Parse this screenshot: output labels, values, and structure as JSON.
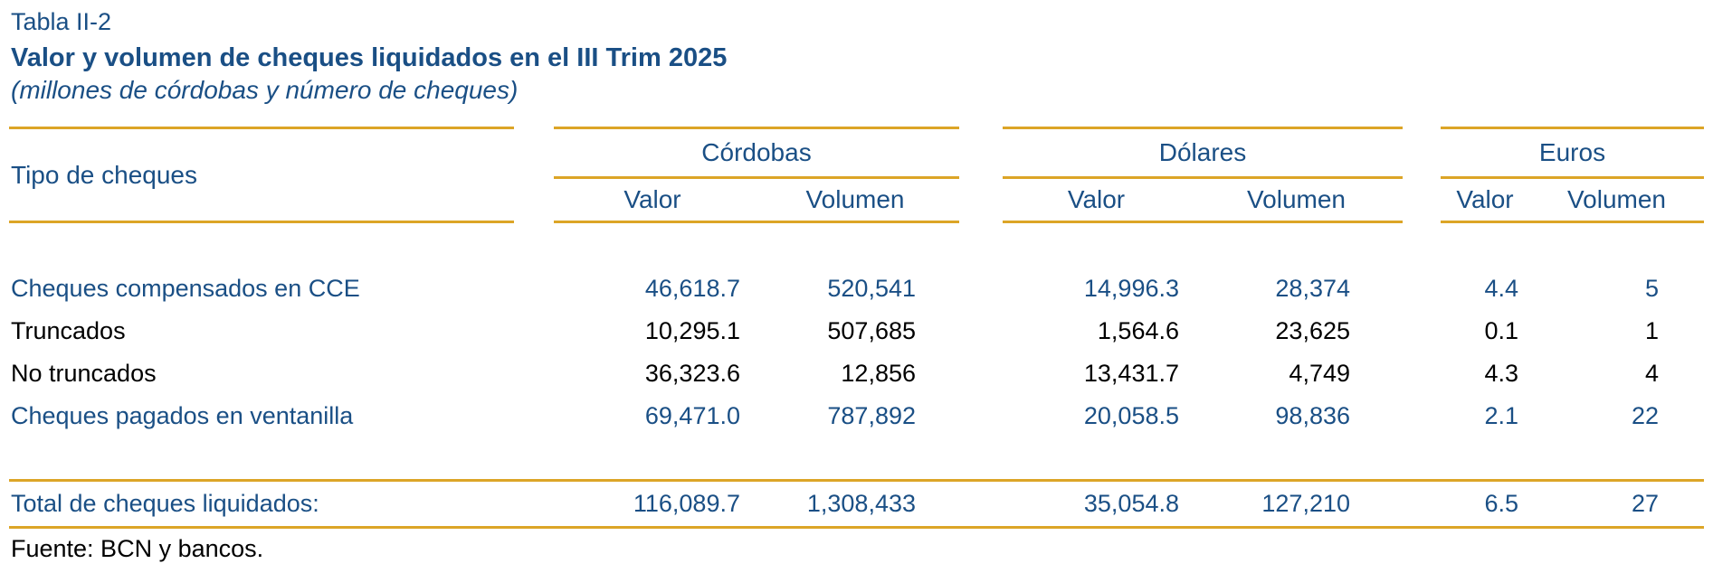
{
  "title": {
    "label": "Tabla II-2",
    "heading": "Valor y volumen de cheques liquidados en el III Trim 2025",
    "subtitle": "(millones de córdobas y número de cheques)"
  },
  "table": {
    "row_header": "Tipo de cheques",
    "groups": [
      {
        "label": "Córdobas",
        "columns": [
          "Valor",
          "Volumen"
        ]
      },
      {
        "label": "Dólares",
        "columns": [
          "Valor",
          "Volumen"
        ]
      },
      {
        "label": "Euros",
        "columns": [
          "Valor",
          "Volumen"
        ]
      }
    ],
    "rows": [
      {
        "label": "Cheques compensados en CCE",
        "emphasis": true,
        "values": [
          "46,618.7",
          "520,541",
          "14,996.3",
          "28,374",
          "4.4",
          "5"
        ]
      },
      {
        "label": "Truncados",
        "emphasis": false,
        "values": [
          "10,295.1",
          "507,685",
          "1,564.6",
          "23,625",
          "0.1",
          "1"
        ]
      },
      {
        "label": "No truncados",
        "emphasis": false,
        "values": [
          "36,323.6",
          "12,856",
          "13,431.7",
          "4,749",
          "4.3",
          "4"
        ]
      },
      {
        "label": "Cheques pagados en ventanilla",
        "emphasis": true,
        "values": [
          "69,471.0",
          "787,892",
          "20,058.5",
          "98,836",
          "2.1",
          "22"
        ]
      }
    ],
    "total": {
      "label": "Total de cheques liquidados:",
      "values": [
        "116,089.7",
        "1,308,433",
        "35,054.8",
        "127,210",
        "6.5",
        "27"
      ]
    },
    "source": "Fuente: BCN y bancos."
  },
  "colors": {
    "accent_blue": "#1A4F85",
    "rule_gold": "#DCA527",
    "text_black": "#000000",
    "background": "#FFFFFF"
  },
  "chart_data": {
    "type": "table",
    "title": "Valor y volumen de cheques liquidados en el III Trim 2025",
    "row_header": "Tipo de cheques",
    "column_groups": [
      "Córdobas",
      "Dólares",
      "Euros"
    ],
    "columns": [
      "Córdobas Valor",
      "Córdobas Volumen",
      "Dólares Valor",
      "Dólares Volumen",
      "Euros Valor",
      "Euros Volumen"
    ],
    "rows": [
      {
        "label": "Cheques compensados en CCE",
        "values": [
          46618.7,
          520541,
          14996.3,
          28374,
          4.4,
          5
        ]
      },
      {
        "label": "Truncados",
        "values": [
          10295.1,
          507685,
          1564.6,
          23625,
          0.1,
          1
        ]
      },
      {
        "label": "No truncados",
        "values": [
          36323.6,
          12856,
          13431.7,
          4749,
          4.3,
          4
        ]
      },
      {
        "label": "Cheques pagados en ventanilla",
        "values": [
          69471.0,
          787892,
          20058.5,
          98836,
          2.1,
          22
        ]
      },
      {
        "label": "Total de cheques liquidados:",
        "values": [
          116089.7,
          1308433,
          35054.8,
          127210,
          6.5,
          27
        ]
      }
    ]
  }
}
